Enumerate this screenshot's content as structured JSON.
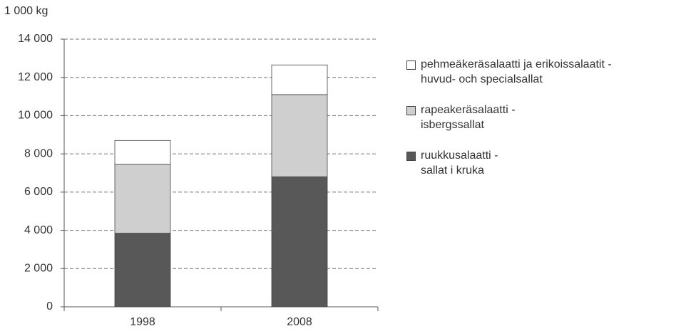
{
  "chart_data": {
    "type": "stacked-bar",
    "y_axis_label": "1 000 kg",
    "categories": [
      "1998",
      "2008"
    ],
    "series": [
      {
        "name": "ruukkusalaatti -\nsallat i kruka",
        "color": "#585858",
        "values": [
          3850,
          6800
        ]
      },
      {
        "name": "rapeakeräsalaatti -\nisbergssallat",
        "color": "#cfcfcf",
        "values": [
          3600,
          4300
        ]
      },
      {
        "name": "pehmeäkeräsalaatti ja erikoissalaatit -\nhuvud- och specialsallat",
        "color": "#ffffff",
        "values": [
          1250,
          1550
        ]
      }
    ],
    "ylim": [
      0,
      14000
    ],
    "yticks": [
      0,
      {
        "value": 2000,
        "label": "2 000"
      },
      {
        "value": 4000,
        "label": "4 000"
      },
      {
        "value": 6000,
        "label": "6 000"
      },
      {
        "value": 8000,
        "label": "8 000"
      },
      {
        "value": 10000,
        "label": "10 000"
      },
      {
        "value": 12000,
        "label": "12 000"
      },
      {
        "value": 14000,
        "label": "14 000"
      }
    ],
    "grid": true,
    "legend": "right"
  }
}
